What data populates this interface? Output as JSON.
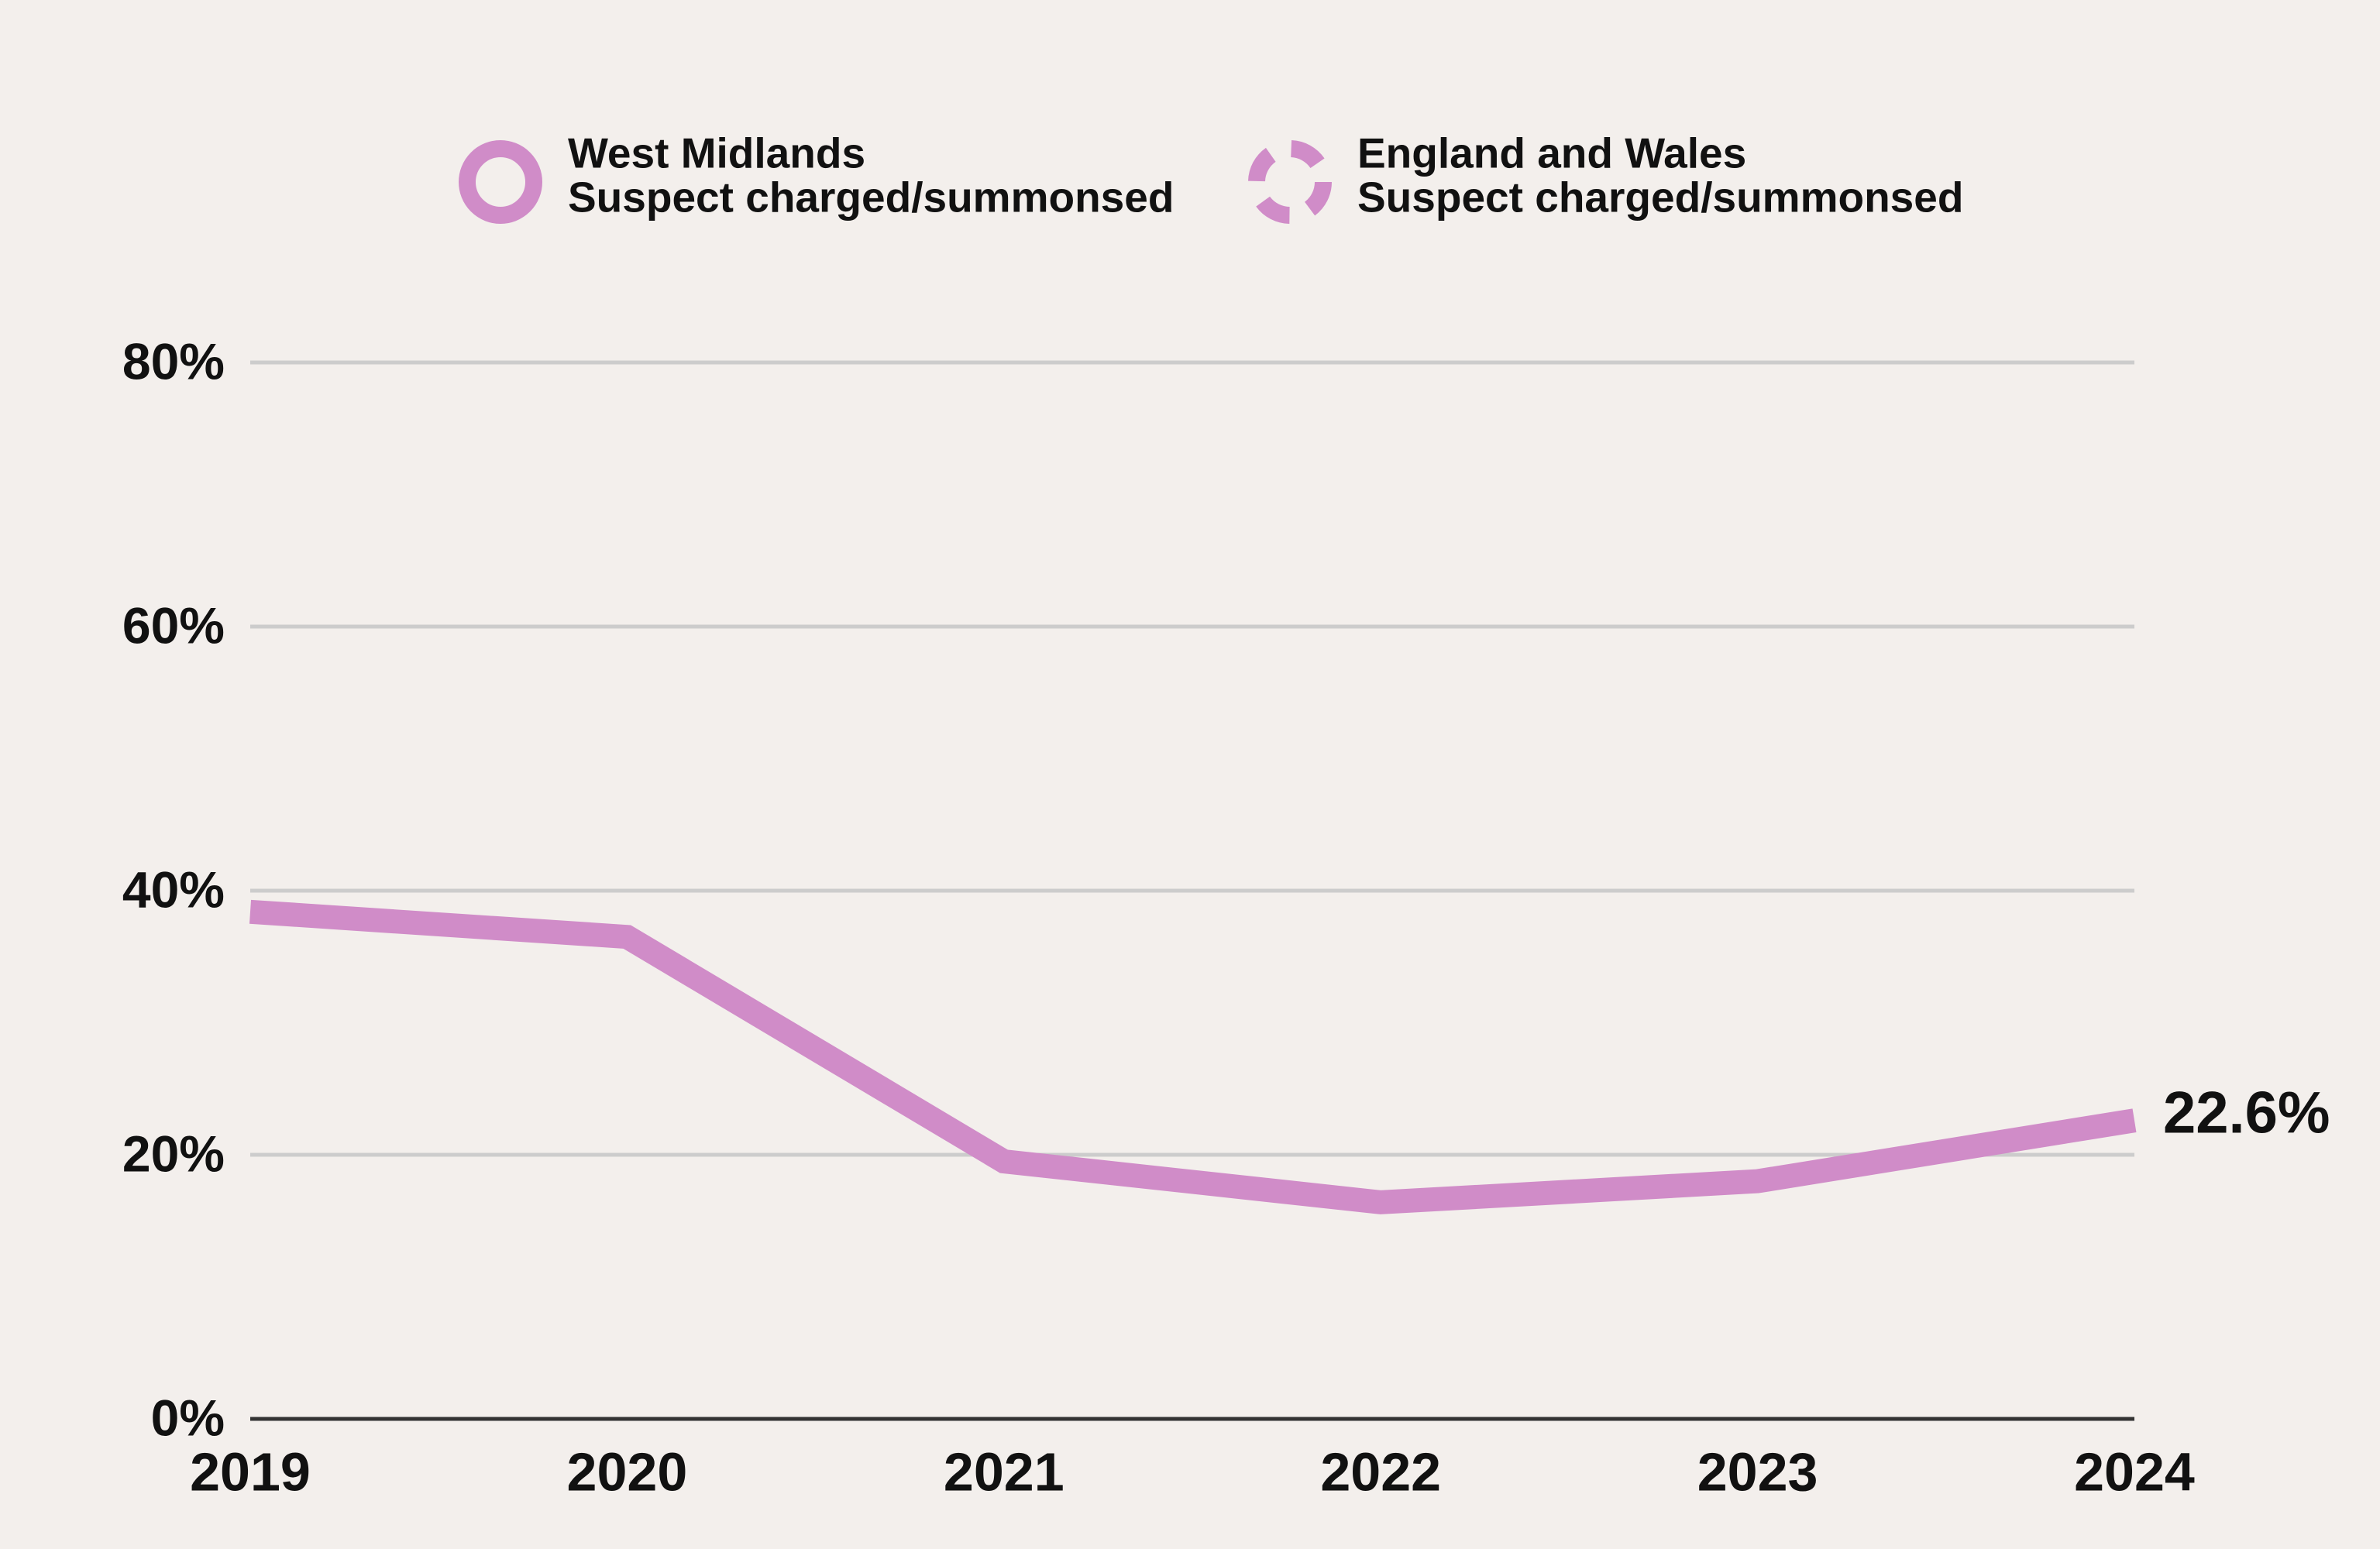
{
  "chart_data": {
    "type": "line",
    "measure": "Suspect charged/summonsed",
    "categories": [
      "2019",
      "2020",
      "2021",
      "2022",
      "2023",
      "2024"
    ],
    "series": [
      {
        "name": "West Midlands",
        "color": "#d08cc8",
        "dashed": false,
        "values": [
          38.4,
          36.5,
          19.5,
          16.4,
          18.0,
          22.6
        ],
        "value_labels": [
          null,
          null,
          null,
          null,
          null,
          "22.6%"
        ]
      },
      {
        "name": "England and Wales",
        "color": "#d08cc8",
        "dashed": true,
        "values": [
          null,
          null,
          null,
          null,
          null,
          null
        ]
      }
    ],
    "ylim": [
      0,
      80
    ],
    "yticks": [
      {
        "value": 0,
        "label": "0%"
      },
      {
        "value": 20,
        "label": "20%"
      },
      {
        "value": 40,
        "label": "40%"
      },
      {
        "value": 60,
        "label": "60%"
      },
      {
        "value": 80,
        "label": "80%"
      }
    ],
    "grid": true,
    "legend": "top"
  }
}
